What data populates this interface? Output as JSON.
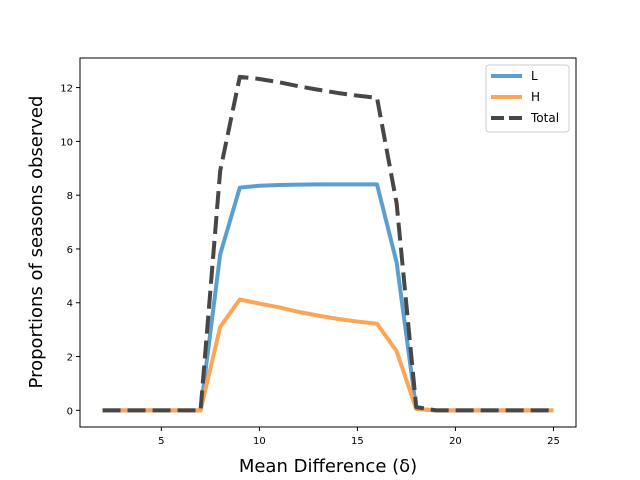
{
  "chart_data": {
    "type": "line",
    "title": "",
    "xlabel": "Mean Difference (δ)",
    "ylabel": "Proportions of seasons observed",
    "xlim": [
      0.85,
      26.15
    ],
    "ylim": [
      -0.62,
      13.1
    ],
    "x_ticks": [
      5,
      10,
      15,
      20,
      25
    ],
    "y_ticks": [
      0,
      2,
      4,
      6,
      8,
      10,
      12
    ],
    "grid": false,
    "legend_position": "top-right",
    "x": [
      2,
      3,
      4,
      5,
      6,
      7,
      8,
      9,
      10,
      11,
      12,
      13,
      14,
      15,
      16,
      17,
      18,
      19,
      20,
      21,
      22,
      23,
      24,
      25
    ],
    "series": [
      {
        "name": "L",
        "color": "#5b9fd0",
        "style": "solid",
        "values": [
          0,
          0,
          0,
          0,
          0,
          0,
          5.8,
          8.28,
          8.35,
          8.38,
          8.39,
          8.4,
          8.4,
          8.4,
          8.4,
          5.5,
          0.05,
          0,
          0,
          0,
          0,
          0,
          0,
          0
        ]
      },
      {
        "name": "H",
        "color": "#fba656",
        "style": "solid",
        "values": [
          0,
          0,
          0,
          0,
          0,
          0,
          3.1,
          4.12,
          3.97,
          3.83,
          3.66,
          3.52,
          3.4,
          3.3,
          3.22,
          2.2,
          0.05,
          0,
          0,
          0,
          0,
          0,
          0,
          0
        ]
      },
      {
        "name": "Total",
        "color": "#474747",
        "style": "dashed",
        "values": [
          0,
          0,
          0,
          0,
          0,
          0,
          8.9,
          12.4,
          12.32,
          12.2,
          12.05,
          11.92,
          11.8,
          11.7,
          11.62,
          7.7,
          0.12,
          0,
          0,
          0,
          0,
          0,
          0,
          0
        ]
      }
    ]
  }
}
